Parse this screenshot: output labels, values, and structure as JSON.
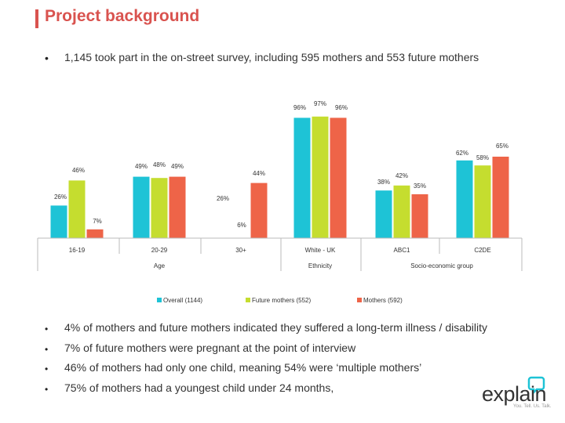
{
  "slide": {
    "title": "Project background",
    "intro_bullet": "1,145 took part in the on-street survey, including 595 mothers and 553 future mothers",
    "bullets": [
      "4% of mothers and future mothers indicated they suffered a long-term illness / disability",
      "7% of future mothers were pregnant at the point of interview",
      "46% of mothers had only one child, meaning 54% were ‘multiple mothers’",
      "75% of mothers had a youngest child under 24 months,"
    ],
    "bullet_symbol": "•"
  },
  "logo": {
    "text": "explain",
    "tagline": "You. Tell. Us. Talk."
  },
  "colors": {
    "overall": "#1ec3d6",
    "future": "#c5dd2f",
    "mothers": "#ee6448",
    "accent": "#d9534f"
  },
  "chart_data": {
    "type": "bar",
    "categories": [
      "16-19",
      "20-29",
      "30+",
      "White - UK",
      "ABC1",
      "C2DE"
    ],
    "groups": [
      {
        "label": "Age",
        "categories": [
          "16-19",
          "20-29",
          "30+"
        ]
      },
      {
        "label": "Ethnicity",
        "categories": [
          "White - UK"
        ]
      },
      {
        "label": "Socio-economic group",
        "categories": [
          "ABC1",
          "C2DE"
        ]
      }
    ],
    "series": [
      {
        "name": "Overall (1144)",
        "values": [
          26,
          49,
          null,
          96,
          38,
          62
        ]
      },
      {
        "name": "Future mothers (552)",
        "values": [
          46,
          48,
          null,
          97,
          42,
          58
        ]
      },
      {
        "name": "Mothers (592)",
        "values": [
          7,
          49,
          44,
          96,
          35,
          65
        ]
      }
    ],
    "extra_labels": [
      "26%",
      "6%"
    ],
    "value_suffix": "%",
    "ylim": [
      0,
      100
    ],
    "legend_position": "bottom"
  }
}
